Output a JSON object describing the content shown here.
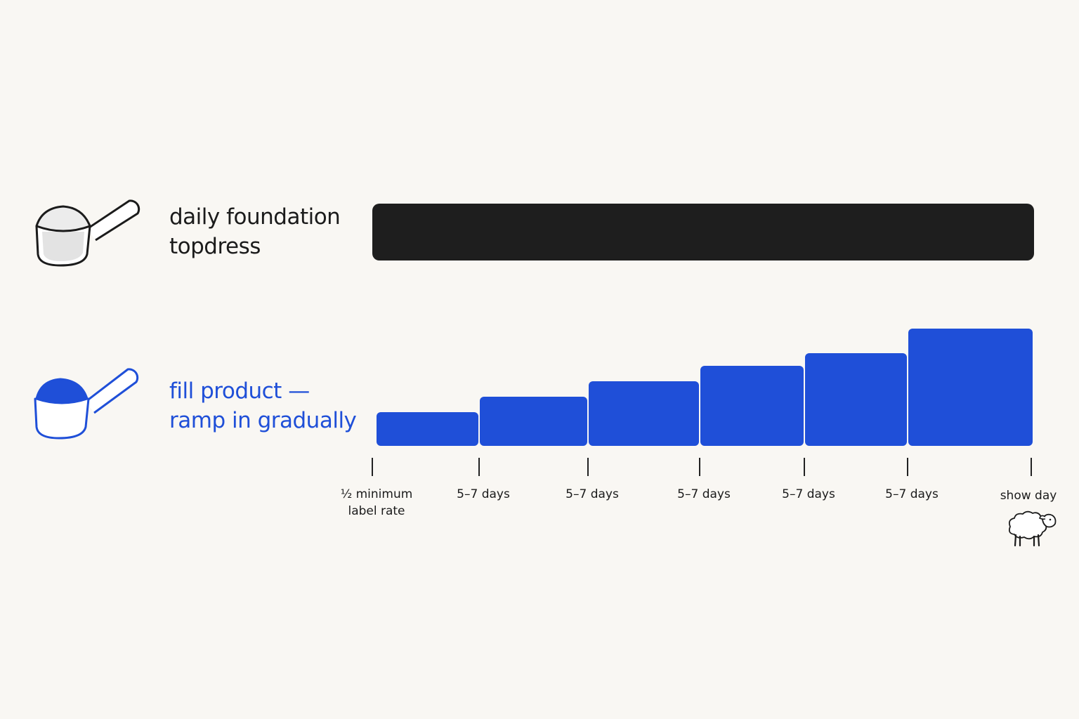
{
  "colors": {
    "background": "#f9f7f3",
    "foundation_bar": "#1e1e1e",
    "fill_product": "#1f4fd8",
    "text": "#1b1b1b"
  },
  "rows": {
    "foundation": {
      "label_line1": "daily foundation",
      "label_line2": "topdress",
      "icon": "scoop-icon"
    },
    "fill": {
      "label_line1": "fill product —",
      "label_line2": "ramp in gradually",
      "icon": "scoop-icon"
    }
  },
  "chart_data": {
    "type": "bar",
    "series": [
      {
        "name": "daily foundation topdress",
        "level": 1.0,
        "shape": "constant"
      },
      {
        "name": "fill product — ramp in gradually",
        "values": [
          1,
          2,
          3,
          4,
          5,
          6
        ],
        "shape": "stepped increase"
      }
    ],
    "timeline": {
      "ticks": [
        "½ minimum\nlabel rate",
        "5–7 days",
        "5–7 days",
        "5–7 days",
        "5–7 days",
        "5–7 days",
        "show day"
      ],
      "end_icon": "sheep-icon"
    }
  }
}
